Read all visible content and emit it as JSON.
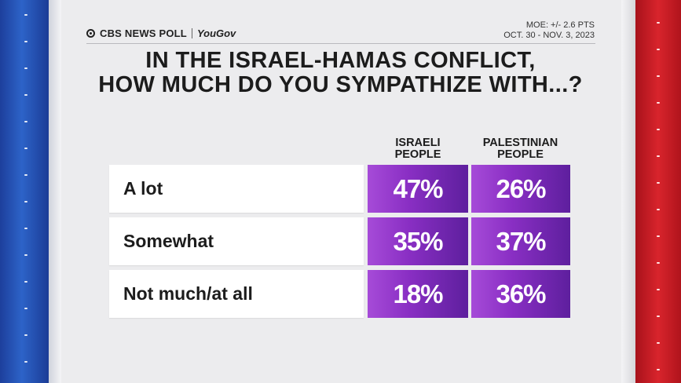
{
  "branding": {
    "network": "CBS NEWS POLL",
    "partner": "YouGov"
  },
  "poll_info": {
    "moe": "MOE: +/- 2.6 PTS",
    "dates": "OCT. 30 - NOV. 3, 2023"
  },
  "title": {
    "line1": "IN THE ISRAEL-HAMAS CONFLICT,",
    "line2": "HOW MUCH DO YOU SYMPATHIZE WITH...?"
  },
  "colors": {
    "accent_purple": "#8a2fc4",
    "left_stripe": "#2d63c8",
    "right_stripe": "#d8242c"
  },
  "chart_data": {
    "type": "table",
    "title": "IN THE ISRAEL-HAMAS CONFLICT, HOW MUCH DO YOU SYMPATHIZE WITH...?",
    "columns": [
      {
        "line1": "ISRAELI",
        "line2": "PEOPLE"
      },
      {
        "line1": "PALESTINIAN",
        "line2": "PEOPLE"
      }
    ],
    "rows": [
      {
        "label": "A lot",
        "values": [
          "47%",
          "26%"
        ]
      },
      {
        "label": "Somewhat",
        "values": [
          "35%",
          "37%"
        ]
      },
      {
        "label": "Not much/at all",
        "values": [
          "18%",
          "36%"
        ]
      }
    ]
  }
}
